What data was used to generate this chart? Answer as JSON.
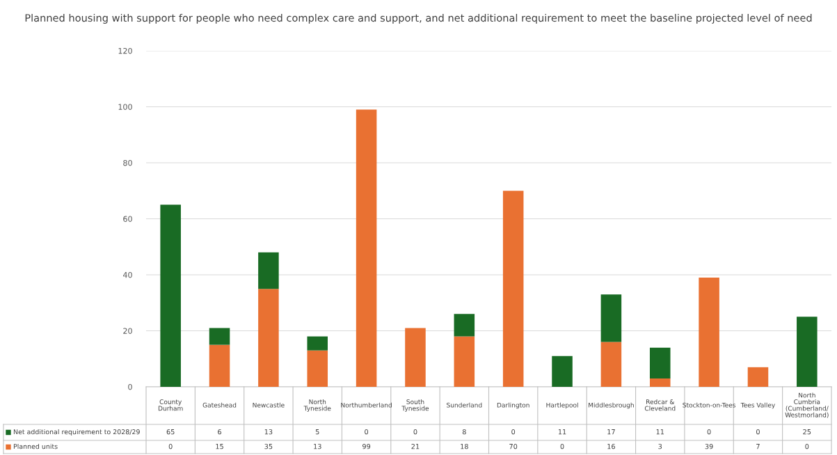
{
  "chart_data": {
    "type": "bar",
    "title": "Planned housing with support for people who need complex care and support, and net additional requirement to meet the baseline projected level of need",
    "categories": [
      "County Durham",
      "Gateshead",
      "Newcastle",
      "North Tyneside",
      "Northumberland",
      "South Tyneside",
      "Sunderland",
      "Darlington",
      "Hartlepool",
      "Middlesbrough",
      "Redcar & Cleveland",
      "Stockton-on-Tees",
      "Tees Valley",
      "North Cumbria (Cumberland/ Westmorland)"
    ],
    "series": [
      {
        "name": "Planned units",
        "color": "#e97132",
        "values": [
          0,
          15,
          35,
          13,
          99,
          21,
          18,
          70,
          0,
          16,
          3,
          39,
          7,
          0
        ]
      },
      {
        "name": "Net additional requirement to 2028/29",
        "color": "#196b24",
        "values": [
          65,
          6,
          13,
          5,
          0,
          0,
          8,
          0,
          11,
          17,
          11,
          0,
          0,
          25
        ]
      }
    ],
    "stacked": true,
    "ylim": [
      0,
      120
    ],
    "yticks": [
      0,
      20,
      40,
      60,
      80,
      100,
      120
    ],
    "grid": "y",
    "legend": "bottom",
    "data_labels": true
  }
}
